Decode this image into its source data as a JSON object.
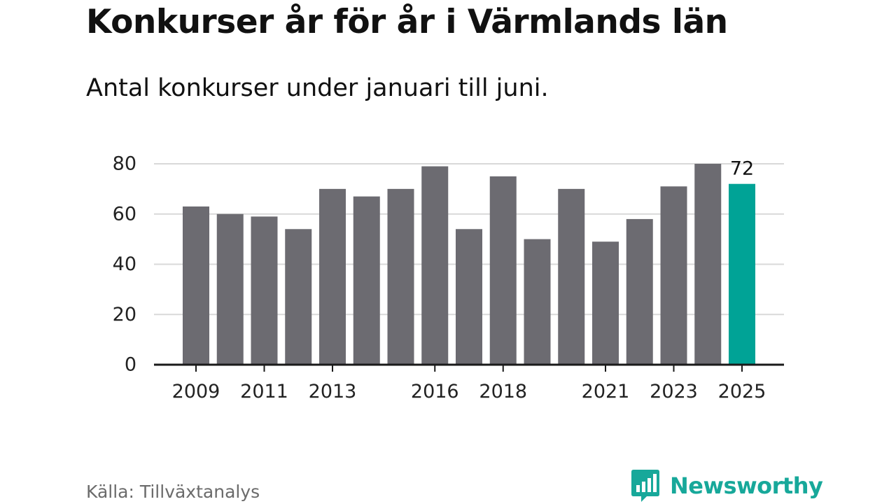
{
  "title": "Konkurser år för år i Värmlands län",
  "subtitle": "Antal konkurser under januari till juni.",
  "source": "Källa: Tillväxtanalys",
  "logo": {
    "name": "Newsworthy",
    "icon": "bar-chart-speech-bubble-icon"
  },
  "colors": {
    "bar": "#6c6b71",
    "highlight": "#00a396",
    "grid": "#d9d9d9",
    "axis": "#1a1a1a",
    "brand": "#17a89a"
  },
  "chart_data": {
    "type": "bar",
    "categories": [
      "2009",
      "2010",
      "2011",
      "2012",
      "2013",
      "2014",
      "2015",
      "2016",
      "2017",
      "2018",
      "2019",
      "2020",
      "2021",
      "2022",
      "2023",
      "2024",
      "2025"
    ],
    "values": [
      63,
      60,
      59,
      54,
      70,
      67,
      70,
      79,
      54,
      75,
      50,
      70,
      49,
      58,
      71,
      80,
      72
    ],
    "x_tick_labels": [
      "2009",
      "2011",
      "2013",
      "2016",
      "2018",
      "2021",
      "2023",
      "2025"
    ],
    "y_ticks": [
      0,
      20,
      40,
      60,
      80
    ],
    "ylim": [
      0,
      80
    ],
    "grid": true,
    "highlight_category": "2025",
    "data_labels": [
      {
        "category": "2025",
        "text": "72"
      }
    ],
    "title": "Konkurser år för år i Värmlands län",
    "subtitle": "Antal konkurser under januari till juni.",
    "xlabel": "",
    "ylabel": ""
  }
}
